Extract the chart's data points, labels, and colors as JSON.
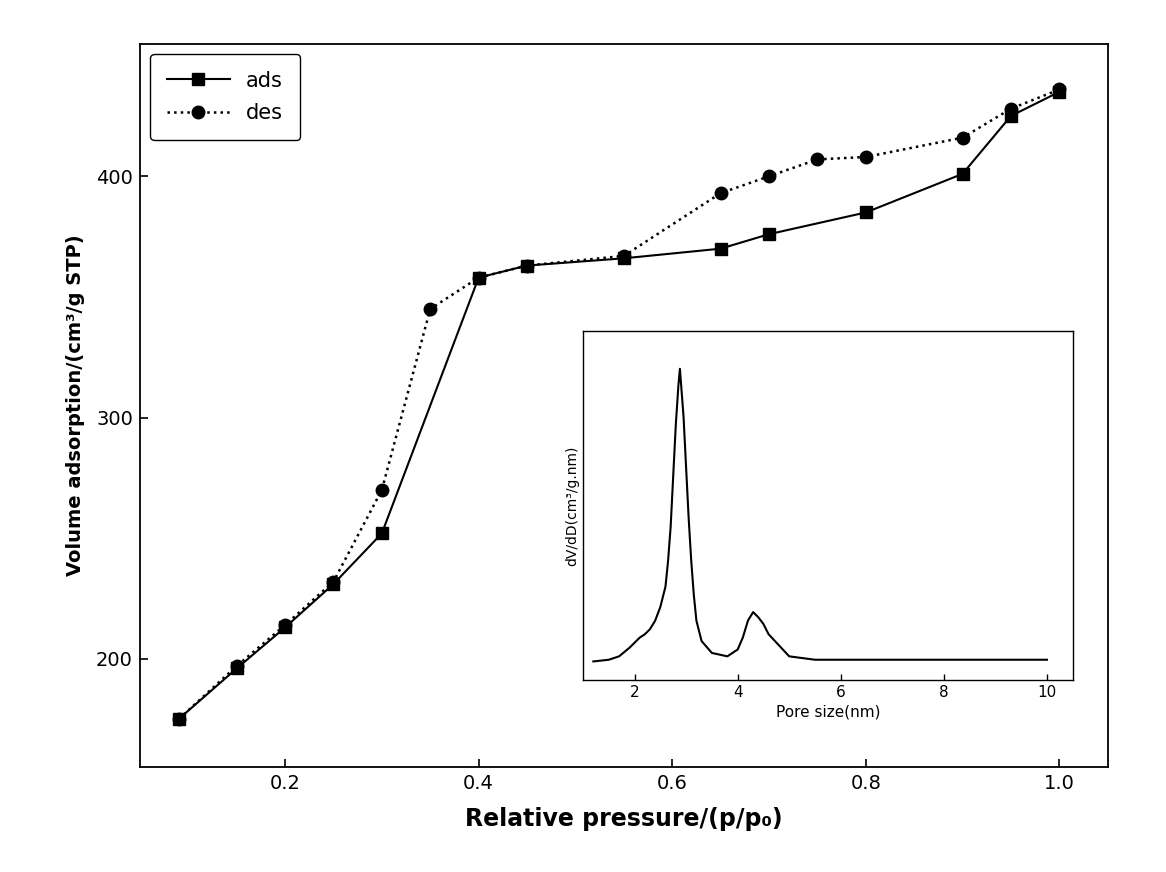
{
  "ads_x": [
    0.09,
    0.15,
    0.2,
    0.25,
    0.3,
    0.4,
    0.45,
    0.55,
    0.65,
    0.7,
    0.8,
    0.9,
    0.95,
    1.0
  ],
  "ads_y": [
    175,
    196,
    213,
    231,
    252,
    358,
    363,
    366,
    370,
    376,
    385,
    401,
    425,
    435
  ],
  "des_x": [
    0.09,
    0.15,
    0.2,
    0.25,
    0.3,
    0.35,
    0.4,
    0.45,
    0.55,
    0.65,
    0.7,
    0.75,
    0.8,
    0.9,
    0.95,
    1.0
  ],
  "des_y": [
    175,
    197,
    214,
    232,
    270,
    345,
    358,
    363,
    367,
    393,
    400,
    407,
    408,
    416,
    428,
    436
  ],
  "xlabel": "Relative pressure/(p/p₀)",
  "ylabel": "Volume adsorption/(cm³/g STP)",
  "xlim": [
    0.05,
    1.05
  ],
  "ylim": [
    155,
    455
  ],
  "xticks": [
    0.2,
    0.4,
    0.6,
    0.8,
    1.0
  ],
  "yticks": [
    200,
    300,
    400
  ],
  "legend_ads": "ads",
  "legend_des": "des",
  "inset_xlabel": "Pore size(nm)",
  "inset_ylabel": "dV/dD(cm³/g.nm)",
  "inset_pore_x": [
    1.2,
    1.5,
    1.7,
    1.9,
    2.0,
    2.1,
    2.2,
    2.3,
    2.4,
    2.5,
    2.6,
    2.65,
    2.7,
    2.75,
    2.8,
    2.85,
    2.88,
    2.9,
    2.95,
    3.0,
    3.05,
    3.1,
    3.15,
    3.2,
    3.3,
    3.5,
    3.8,
    4.0,
    4.1,
    4.2,
    4.3,
    4.4,
    4.5,
    4.6,
    5.0,
    5.5,
    6.0,
    7.0,
    8.0,
    9.0,
    10.0
  ],
  "inset_pore_y": [
    0.06,
    0.07,
    0.09,
    0.14,
    0.17,
    0.2,
    0.22,
    0.25,
    0.3,
    0.38,
    0.5,
    0.65,
    0.85,
    1.15,
    1.45,
    1.68,
    1.78,
    1.7,
    1.5,
    1.2,
    0.9,
    0.65,
    0.45,
    0.3,
    0.18,
    0.11,
    0.09,
    0.13,
    0.2,
    0.3,
    0.35,
    0.32,
    0.28,
    0.22,
    0.09,
    0.07,
    0.07,
    0.07,
    0.07,
    0.07,
    0.07
  ],
  "background_color": "#ffffff",
  "line_color": "#000000"
}
